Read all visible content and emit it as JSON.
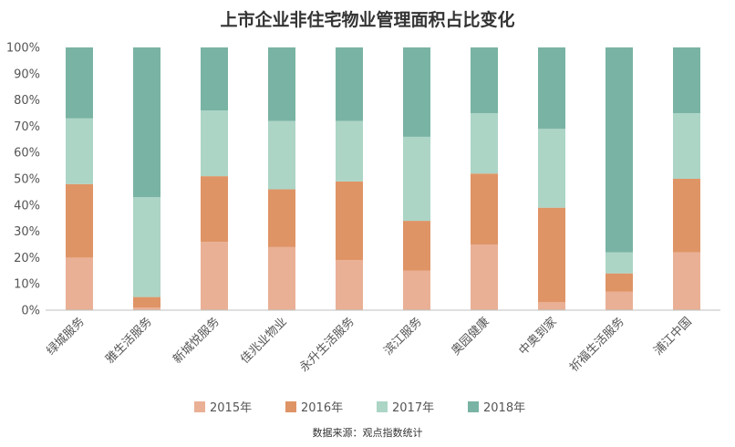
{
  "chart_data": {
    "type": "bar",
    "stacked": true,
    "percent": true,
    "title": "上市企业非住宅物业管理面积占比变化",
    "source": "数据来源：观点指数统计",
    "categories": [
      "绿城服务",
      "雅生活服务",
      "新城悦服务",
      "佳兆业物业",
      "永升生活服务",
      "滨江服务",
      "奥园健康",
      "中奥到家",
      "祈福生活服务",
      "浦江中国"
    ],
    "y_ticks": [
      "0%",
      "10%",
      "20%",
      "30%",
      "40%",
      "50%",
      "60%",
      "70%",
      "80%",
      "90%",
      "100%"
    ],
    "ylim": [
      0,
      100
    ],
    "legend_position": "bottom",
    "series": [
      {
        "name": "2015年",
        "color": "#e9b096",
        "values": [
          20,
          1,
          26,
          24,
          19,
          15,
          25,
          3,
          7,
          22
        ]
      },
      {
        "name": "2016年",
        "color": "#df9466",
        "values": [
          28,
          4,
          25,
          22,
          30,
          19,
          27,
          36,
          7,
          28
        ]
      },
      {
        "name": "2017年",
        "color": "#acd5c6",
        "values": [
          25,
          38,
          25,
          26,
          23,
          32,
          23,
          30,
          8,
          25
        ]
      },
      {
        "name": "2018年",
        "color": "#79b3a3",
        "values": [
          27,
          57,
          24,
          28,
          28,
          34,
          25,
          31,
          78,
          25
        ]
      }
    ]
  }
}
